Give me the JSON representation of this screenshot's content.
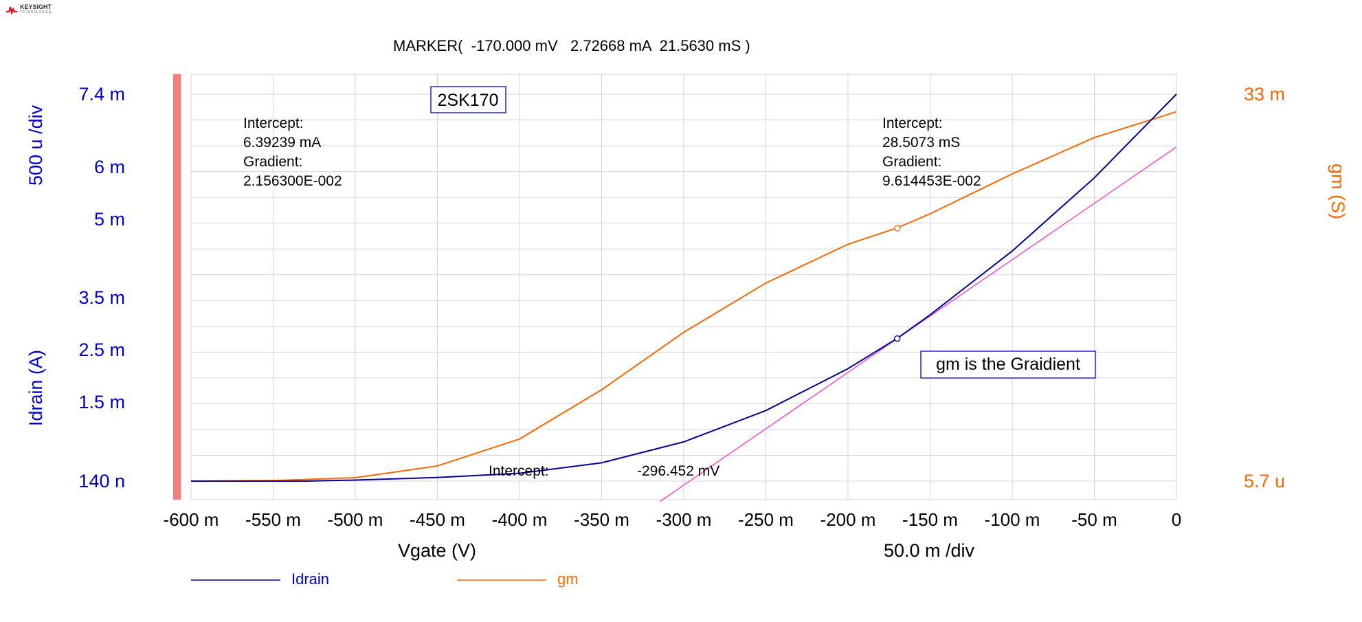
{
  "brand": {
    "name": "KEYSIGHT",
    "sub": "TECHNOLOGIES"
  },
  "marker_readout": "MARKER(  -170.000 mV   2.72668 mA  21.5630 mS )",
  "colors": {
    "idrain": "#000099",
    "gm": "#ff6600",
    "tangent": "#ff33cc",
    "left_axis": "#0000cc",
    "right_axis": "#ff6600",
    "grid": "#d4d4d4",
    "bar": "#f08080"
  },
  "chart_data": {
    "type": "line",
    "title": "2SK170",
    "xlabel": "Vgate (V)",
    "x_div_label": "50.0 m /div",
    "xlim": [
      -0.6,
      0
    ],
    "x_ticks": [
      -0.6,
      -0.55,
      -0.5,
      -0.45,
      -0.4,
      -0.35,
      -0.3,
      -0.25,
      -0.2,
      -0.15,
      -0.1,
      -0.05,
      0
    ],
    "x_tick_labels": [
      "-600 m",
      "-550 m",
      "-500 m",
      "-450 m",
      "-400 m",
      "-350 m",
      "-300 m",
      "-250 m",
      "-200 m",
      "-150 m",
      "-100 m",
      "-50 m",
      "0"
    ],
    "y_left": {
      "label": "Idrain (A)",
      "div_label": "500 u /div",
      "range": [
        1.4e-07,
        0.0074
      ],
      "tick_labels": [
        "7.4 m",
        "6 m",
        "5 m",
        "3.5 m",
        "2.5 m",
        "1.5 m",
        "140 n"
      ]
    },
    "y_right": {
      "label": "gm (S)",
      "range": [
        5.7e-06,
        0.033
      ],
      "tick_labels": [
        "33 m",
        "5.7 u"
      ]
    },
    "series": [
      {
        "name": "Idrain",
        "axis": "left",
        "x": [
          -0.6,
          -0.53,
          -0.5,
          -0.45,
          -0.4,
          -0.35,
          -0.3,
          -0.25,
          -0.2,
          -0.17,
          -0.15,
          -0.1,
          -0.05,
          0
        ],
        "y": [
          1.4e-07,
          1.4e-07,
          2e-05,
          7e-05,
          0.00015,
          0.00035,
          0.00075,
          0.00135,
          0.00215,
          0.00273,
          0.00318,
          0.0044,
          0.0058,
          0.0074
        ]
      },
      {
        "name": "gm",
        "axis": "right",
        "x": [
          -0.6,
          -0.55,
          -0.5,
          -0.45,
          -0.4,
          -0.35,
          -0.3,
          -0.25,
          -0.2,
          -0.17,
          -0.15,
          -0.1,
          -0.05,
          0
        ],
        "y": [
          5.7e-06,
          5e-05,
          0.0003,
          0.0013,
          0.0036,
          0.0078,
          0.0127,
          0.0169,
          0.0202,
          0.0216,
          0.0228,
          0.0262,
          0.0293,
          0.0315
        ]
      }
    ],
    "tangent_line": {
      "intercept_v": -0.296452,
      "gradient": 0.021563
    },
    "marker": {
      "x": -0.17,
      "idrain": 0.00272668,
      "gm": 0.021563
    },
    "annotations": {
      "left": [
        "Intercept:",
        "6.39239 mA",
        "Gradient:",
        "2.156300E-002"
      ],
      "right": [
        "Intercept:",
        "28.5073 mS",
        "Gradient:",
        "9.614453E-002"
      ],
      "x_intercept_label": "Intercept:",
      "x_intercept_value": "-296.452 mV",
      "note": "gm is the Graidient"
    },
    "legend": [
      "Idrain",
      "gm"
    ],
    "grid": true
  }
}
